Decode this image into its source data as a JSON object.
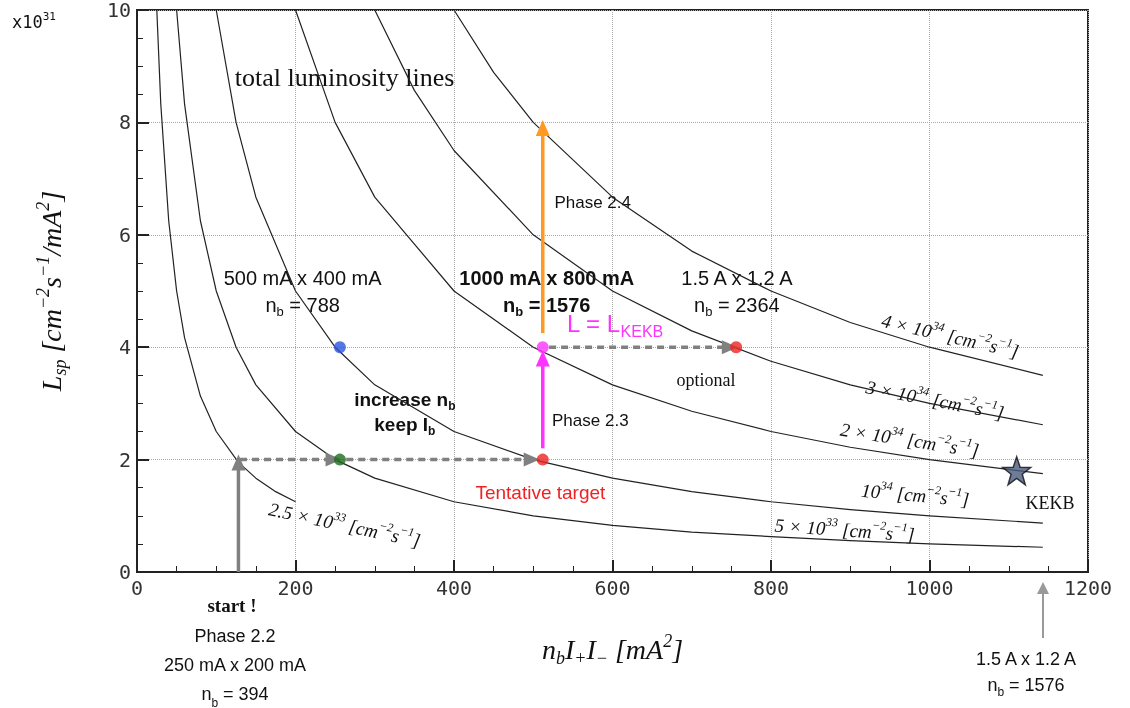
{
  "chart_data": {
    "type": "line",
    "xlabel": "n$_{b}$I$_{+}$I$_{−}$ [mA$^{2}$]",
    "ylabel": "L$_{sp}$ [cm$^{−2}$s$^{−1}$/mA$^{2}$]",
    "xlim": [
      0,
      1200
    ],
    "xticks": [
      0,
      200,
      400,
      600,
      800,
      1000,
      1200
    ],
    "ylim": [
      0,
      10
    ],
    "yticks": [
      0,
      2,
      4,
      6,
      8,
      10
    ],
    "grid": true,
    "marker": "none",
    "line_style": "solid",
    "series": [
      {
        "color": "#222222",
        "x": [
          25,
          30,
          40,
          50,
          60,
          80,
          100,
          128,
          150,
          175,
          200
        ],
        "values": [
          10,
          8.33,
          6.25,
          5,
          4.17,
          3.13,
          2.5,
          1.95,
          1.67,
          1.43,
          1.25
        ]
      },
      {
        "color": "#222222",
        "x": [
          50,
          60,
          80,
          100,
          125,
          150,
          200,
          250,
          300,
          400,
          500,
          600,
          700,
          800,
          900,
          1000,
          1143
        ],
        "values": [
          10,
          8.33,
          6.25,
          5,
          4,
          3.33,
          2.5,
          2,
          1.67,
          1.25,
          1,
          0.83,
          0.71,
          0.63,
          0.56,
          0.5,
          0.44
        ]
      },
      {
        "color": "#222222",
        "x": [
          100,
          125,
          150,
          200,
          250,
          300,
          400,
          500,
          600,
          700,
          800,
          900,
          1000,
          1143
        ],
        "values": [
          10,
          8,
          6.67,
          5,
          4,
          3.33,
          2.5,
          2,
          1.67,
          1.43,
          1.25,
          1.11,
          1,
          0.87
        ]
      },
      {
        "color": "#222222",
        "x": [
          200,
          250,
          300,
          400,
          500,
          600,
          700,
          800,
          900,
          1000,
          1143
        ],
        "values": [
          10,
          8,
          6.67,
          5,
          4,
          3.33,
          2.86,
          2.5,
          2.22,
          2,
          1.75
        ]
      },
      {
        "color": "#222222",
        "x": [
          300,
          350,
          400,
          500,
          600,
          700,
          800,
          900,
          1000,
          1143
        ],
        "values": [
          10,
          8.57,
          7.5,
          6,
          5,
          4.29,
          3.75,
          3.33,
          3,
          2.62
        ]
      },
      {
        "color": "#222222",
        "x": [
          400,
          450,
          500,
          600,
          700,
          800,
          900,
          1000,
          1143
        ],
        "values": [
          10,
          8.89,
          8,
          6.67,
          5.71,
          5,
          4.44,
          4,
          3.5
        ]
      },
      {
        "color": "#808080",
        "marker": "triangle",
        "x": [
          128,
          128
        ],
        "values": [
          0,
          1.95
        ]
      },
      {
        "color": "#808080",
        "marker": "triangle",
        "line_style": "dashed",
        "x": [
          130,
          248
        ],
        "values": [
          2,
          2
        ]
      },
      {
        "color": "#808080",
        "marker": "triangle",
        "line_style": "dashed",
        "x": [
          264,
          498
        ],
        "values": [
          2,
          2
        ]
      },
      {
        "color": "#808080",
        "marker": "triangle",
        "line_style": "dashed",
        "x": [
          520,
          748
        ],
        "values": [
          4,
          4
        ]
      },
      {
        "color": "#ff33ff",
        "marker": "triangle",
        "x": [
          512,
          512
        ],
        "values": [
          2.2,
          3.8
        ]
      },
      {
        "color": "#ff9922",
        "marker": "triangle",
        "x": [
          512,
          512
        ],
        "values": [
          4.25,
          7.9
        ]
      },
      {
        "type": "scatter",
        "marker": "circle",
        "x": [
          256,
          256,
          512,
          512,
          756
        ],
        "values": [
          4,
          2,
          4,
          2,
          4
        ],
        "colors": [
          "#2a55e0",
          "#1e6b1e",
          "#ff33ff",
          "#ee2222",
          "#ee2222"
        ]
      },
      {
        "type": "scatter",
        "marker": "star",
        "color": "#4a5a80",
        "x": [
          1110
        ],
        "values": [
          1.8
        ]
      }
    ],
    "annotations": [
      "total luminosity lines",
      "500 mA x 400 mA\nn$_{b}$ = 788",
      "1000 mA x 800 mA\nn$_{b}$ = 1576",
      "1.5 A x 1.2 A\nn$_{b}$ = 2364",
      "L = L$_{KEKB}$",
      "Phase 2.4",
      "Phase 2.3",
      "increase n$_{b}$\nkeep I$_{b}$",
      "optional",
      "Tentative target",
      "KEKB",
      "4 × 10$^{34}$ [cm$^{−2}$s$^{−1}$]",
      "3 × 10$^{34}$ [cm$^{−2}$s$^{−1}$]",
      "2 × 10$^{34}$ [cm$^{−2}$s$^{−1}$]",
      "10$^{34}$ [cm$^{−2}$s$^{−1}$]",
      "5 × 10$^{33}$ [cm$^{−2}$s$^{−1}$]",
      "2.5 × 10$^{33}$ [cm$^{−2}$s$^{−1}$]",
      "x10$^{31}$",
      "start !",
      "Phase 2.2\n250 mA x 200 mA\nn$_{b}$ = 394",
      "1.5 A x 1.2 A\nn$_{b}$ = 1576"
    ]
  }
}
